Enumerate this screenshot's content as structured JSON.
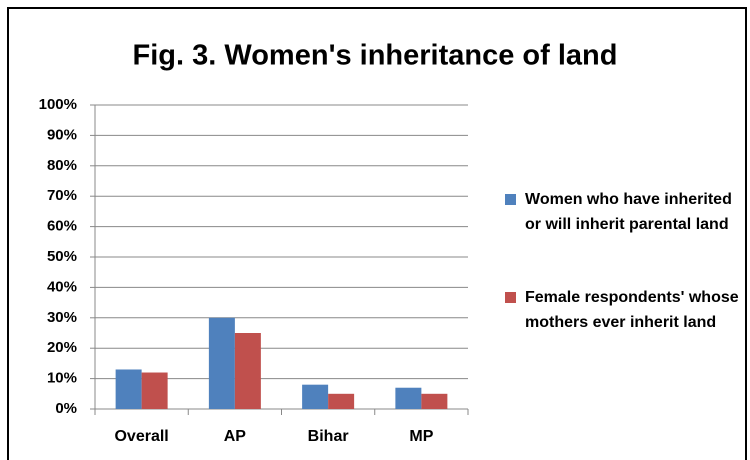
{
  "chart_data": {
    "type": "bar",
    "title": "Fig. 3. Women's inheritance of land",
    "categories": [
      "Overall",
      "AP",
      "Bihar",
      "MP"
    ],
    "series": [
      {
        "name": "Women who have inherited or will inherit parental land",
        "color": "#4f81bd",
        "values": [
          13,
          30,
          8,
          7
        ]
      },
      {
        "name": "Female respondents' whose mothers ever inherit land",
        "color": "#c0504d",
        "values": [
          12,
          25,
          5,
          5
        ]
      }
    ],
    "ylim": [
      0,
      100
    ],
    "yticks": [
      {
        "value": 0,
        "label": "0%"
      },
      {
        "value": 10,
        "label": "10%"
      },
      {
        "value": 20,
        "label": "20%"
      },
      {
        "value": 30,
        "label": "30%"
      },
      {
        "value": 40,
        "label": "40%"
      },
      {
        "value": 50,
        "label": "50%"
      },
      {
        "value": 60,
        "label": "60%"
      },
      {
        "value": 70,
        "label": "70%"
      },
      {
        "value": 80,
        "label": "80%"
      },
      {
        "value": 90,
        "label": "90%"
      },
      {
        "value": 100,
        "label": "100%"
      }
    ],
    "grid": true,
    "legend": "right"
  }
}
